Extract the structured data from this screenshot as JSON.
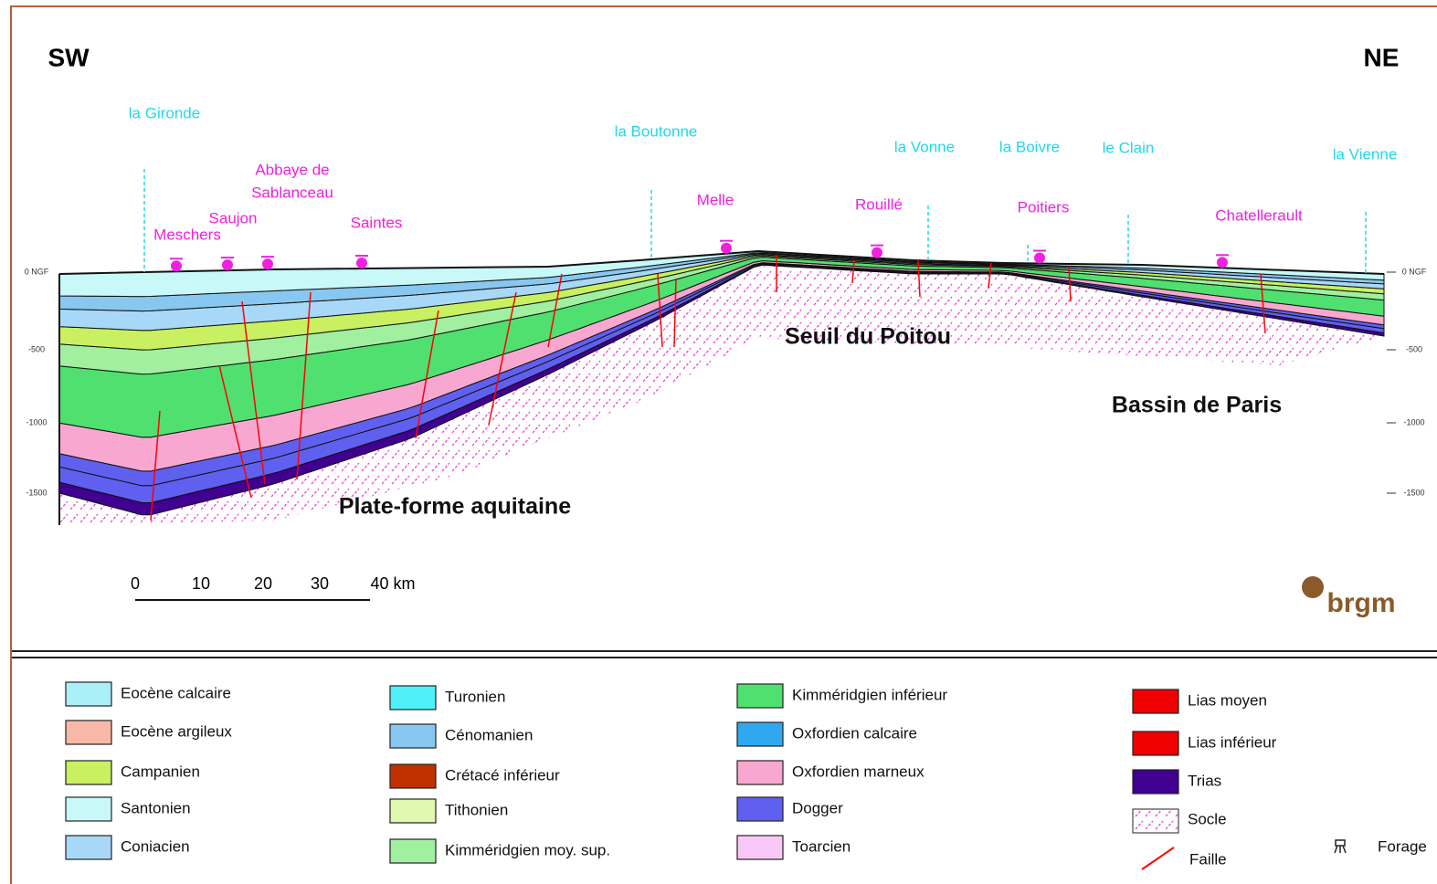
{
  "header": {
    "left": "SW",
    "right": "NE"
  },
  "rivers": [
    "la Gironde",
    "la Boutonne",
    "la Vonne",
    "la Boivre",
    "le Clain",
    "la Vienne"
  ],
  "towns": [
    [
      "Meschers"
    ],
    [
      "Saujon"
    ],
    [
      "Abbaye de",
      "Sablanceau"
    ],
    [
      "Saintes"
    ],
    [
      "Melle"
    ],
    [
      "Rouillé"
    ],
    [
      "Poitiers"
    ],
    [
      "Chatellerault"
    ]
  ],
  "regions": [
    "Seuil du Poitou",
    "Bassin de Paris",
    "Plate-forme aquitaine"
  ],
  "depth_labels": [
    "0 NGF",
    "-500",
    "-1000",
    "-1500"
  ],
  "scale": {
    "labels": [
      "0",
      "10",
      "20",
      "30",
      "40 km"
    ]
  },
  "logo": "brgm",
  "legend": [
    {
      "label": "Eocène calcaire",
      "color": "#aaf0f8"
    },
    {
      "label": "Eocène argileux",
      "color": "#f8b8a8"
    },
    {
      "label": "Campanien",
      "color": "#c8f060"
    },
    {
      "label": "Santonien",
      "color": "#c8f8f8"
    },
    {
      "label": "Coniacien",
      "color": "#a8d8f8"
    },
    {
      "label": "Turonien",
      "color": "#50f0f8"
    },
    {
      "label": "Cénomanien",
      "color": "#88c8f0"
    },
    {
      "label": "Crétacé inférieur",
      "color": "#c03000"
    },
    {
      "label": "Tithonien",
      "color": "#e0f8b0"
    },
    {
      "label": "Kimméridgien moy. sup.",
      "color": "#a0f0a0"
    },
    {
      "label": "Kimméridgien inférieur",
      "color": "#50e070"
    },
    {
      "label": "Oxfordien calcaire",
      "color": "#30a8f0"
    },
    {
      "label": "Oxfordien marneux",
      "color": "#f8a8d0"
    },
    {
      "label": "Dogger",
      "color": "#6060f0"
    },
    {
      "label": "Toarcien",
      "color": "#f8c8f8"
    },
    {
      "label": "Lias moyen",
      "color": "#f00000"
    },
    {
      "label": "Lias inférieur",
      "color": "#f00000"
    },
    {
      "label": "Trias",
      "color": "#400090"
    }
  ],
  "legend_symbols": [
    "Socle",
    "Faille",
    "Forage"
  ]
}
